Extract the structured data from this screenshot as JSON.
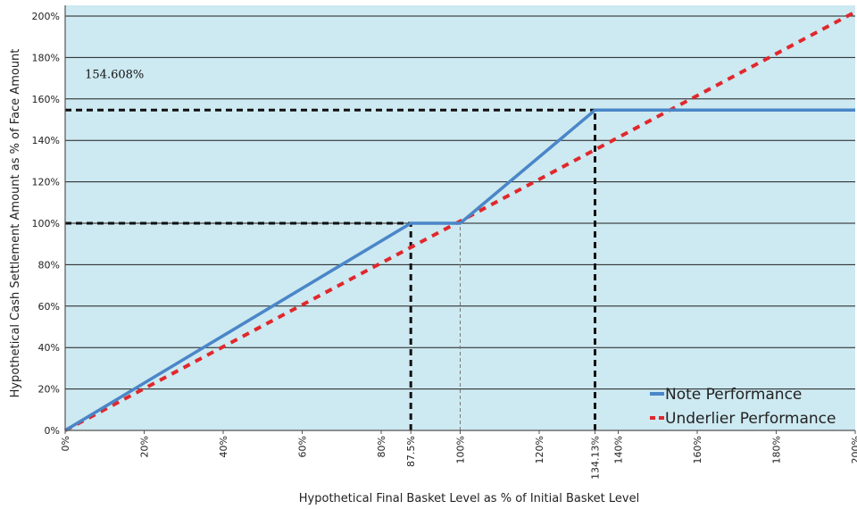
{
  "chart_data": {
    "type": "line",
    "xlabel": "Hypothetical Final Basket Level as % of Initial Basket Level",
    "ylabel": "Hypothetical Cash Settlement Amount as % of Face Amount",
    "xlim": [
      0,
      200
    ],
    "ylim": [
      0,
      200
    ],
    "x_ticks": [
      {
        "value": 0,
        "label": "0%"
      },
      {
        "value": 20,
        "label": "20%"
      },
      {
        "value": 40,
        "label": "40%"
      },
      {
        "value": 60,
        "label": "60%"
      },
      {
        "value": 80,
        "label": "80%"
      },
      {
        "value": 87.5,
        "label": "87.5%"
      },
      {
        "value": 100,
        "label": "100%"
      },
      {
        "value": 120,
        "label": "120%"
      },
      {
        "value": 134.13,
        "label": "134.13%"
      },
      {
        "value": 140,
        "label": "140%"
      },
      {
        "value": 160,
        "label": "160%"
      },
      {
        "value": 180,
        "label": "180%"
      },
      {
        "value": 200,
        "label": "200%"
      }
    ],
    "y_ticks": [
      {
        "value": 0,
        "label": "0%"
      },
      {
        "value": 20,
        "label": "20%"
      },
      {
        "value": 40,
        "label": "40%"
      },
      {
        "value": 60,
        "label": "60%"
      },
      {
        "value": 80,
        "label": "80%"
      },
      {
        "value": 100,
        "label": "100%"
      },
      {
        "value": 120,
        "label": "120%"
      },
      {
        "value": 140,
        "label": "140%"
      },
      {
        "value": 160,
        "label": "160%"
      },
      {
        "value": 180,
        "label": "180%"
      },
      {
        "value": 200,
        "label": "200%"
      }
    ],
    "grid": "horizontal",
    "legend_position": "bottom-right",
    "background_color": "#cde9f1",
    "series": [
      {
        "name": "Note Performance",
        "color": "#4a86c8",
        "style": "solid",
        "x": [
          0,
          87.5,
          100,
          134.13,
          200
        ],
        "y": [
          0,
          100,
          100,
          154.608,
          154.608
        ]
      },
      {
        "name": "Underlier Performance",
        "color": "#e0282c",
        "style": "dashed",
        "x": [
          0,
          200
        ],
        "y": [
          0,
          202
        ]
      }
    ],
    "reference_lines": [
      {
        "kind": "horizontal",
        "y": 154.608,
        "x_from": 0,
        "x_to": 134.13,
        "color": "#111111",
        "style": "bold-dashed"
      },
      {
        "kind": "vertical",
        "x": 134.13,
        "y_from": 0,
        "y_to": 154.608,
        "color": "#111111",
        "style": "bold-dashed"
      },
      {
        "kind": "horizontal",
        "y": 100,
        "x_from": 0,
        "x_to": 87.5,
        "color": "#111111",
        "style": "bold-dashed"
      },
      {
        "kind": "vertical",
        "x": 87.5,
        "y_from": 0,
        "y_to": 100,
        "color": "#111111",
        "style": "bold-dashed"
      },
      {
        "kind": "vertical",
        "x": 100,
        "y_from": 0,
        "y_to": 100,
        "color": "#777777",
        "style": "thin-dashed"
      }
    ],
    "annotations": [
      {
        "text": "154.608%",
        "x": 5,
        "y": 170
      }
    ]
  }
}
